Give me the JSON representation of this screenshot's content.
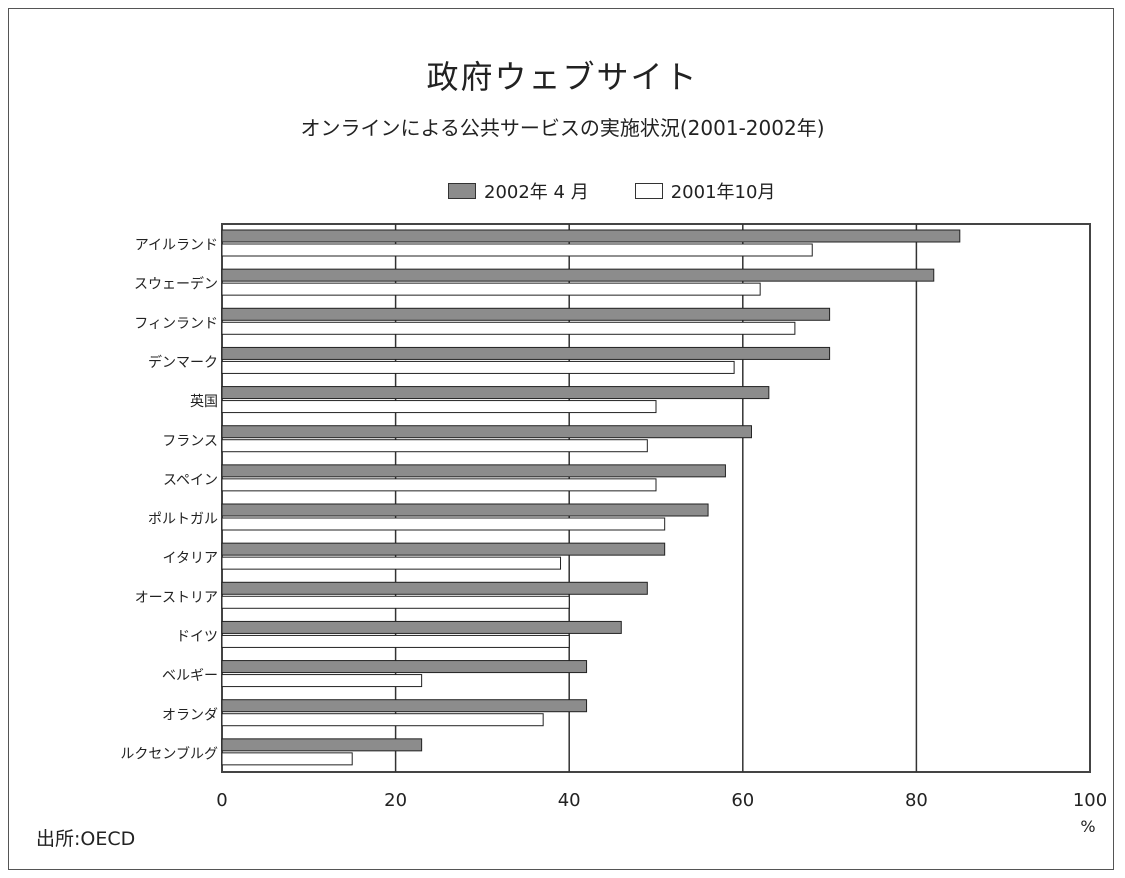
{
  "chart_data": {
    "type": "bar",
    "orientation": "horizontal",
    "title": "政府ウェブサイト",
    "subtitle": "オンラインによる公共サービスの実施状況(2001-2002年)",
    "categories": [
      "アイルランド",
      "スウェーデン",
      "フィンランド",
      "デンマーク",
      "英国",
      "フランス",
      "スペイン",
      "ポルトガル",
      "イタリア",
      "オーストリア",
      "ドイツ",
      "ベルギー",
      "オランダ",
      "ルクセンブルグ"
    ],
    "series": [
      {
        "name": "2002年 4 月",
        "values": [
          85,
          82,
          70,
          70,
          63,
          61,
          58,
          56,
          51,
          49,
          46,
          42,
          42,
          23
        ],
        "color": "#8c8c8c"
      },
      {
        "name": "2001年10月",
        "values": [
          68,
          62,
          66,
          59,
          50,
          49,
          50,
          51,
          39,
          40,
          40,
          23,
          37,
          15
        ],
        "color": "#ffffff"
      }
    ],
    "xlim": [
      0,
      100
    ],
    "xticks": [
      "0",
      "20",
      "40",
      "60",
      "80",
      "100"
    ],
    "xunit": "%",
    "grid": true,
    "legend_position": "top"
  },
  "source": "出所:OECD"
}
